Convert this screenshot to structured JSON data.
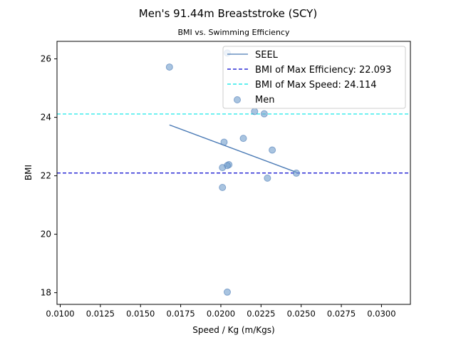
{
  "chart_data": {
    "type": "scatter",
    "title": "Men's 91.44m Breaststroke (SCY)",
    "subtitle": "BMI vs. Swimming Efficiency",
    "xlabel": "Speed / Kg (m/Kgs)",
    "ylabel": "BMI",
    "xlim": [
      0.0098,
      0.0318
    ],
    "ylim": [
      17.6,
      26.6
    ],
    "x_ticks": [
      0.01,
      0.0125,
      0.015,
      0.0175,
      0.02,
      0.0225,
      0.025,
      0.0275,
      0.03
    ],
    "x_tick_labels": [
      "0.0100",
      "0.0125",
      "0.0150",
      "0.0175",
      "0.0200",
      "0.0225",
      "0.0250",
      "0.0275",
      "0.0300"
    ],
    "y_ticks": [
      18,
      20,
      22,
      24,
      26
    ],
    "y_tick_labels": [
      "18",
      "20",
      "22",
      "24",
      "26"
    ],
    "grid": false,
    "legend_position": "top-right",
    "scatter": {
      "name": "Men",
      "color": "#6f9ccc",
      "points": [
        {
          "x": 0.0168,
          "y": 25.72
        },
        {
          "x": 0.0204,
          "y": 26.2
        },
        {
          "x": 0.0221,
          "y": 24.2
        },
        {
          "x": 0.0227,
          "y": 24.12
        },
        {
          "x": 0.0214,
          "y": 23.28
        },
        {
          "x": 0.0202,
          "y": 23.15
        },
        {
          "x": 0.0232,
          "y": 22.88
        },
        {
          "x": 0.0205,
          "y": 22.38
        },
        {
          "x": 0.0204,
          "y": 22.35
        },
        {
          "x": 0.0201,
          "y": 22.28
        },
        {
          "x": 0.0247,
          "y": 22.09
        },
        {
          "x": 0.0229,
          "y": 21.92
        },
        {
          "x": 0.0201,
          "y": 21.6
        },
        {
          "x": 0.0204,
          "y": 18.02
        }
      ]
    },
    "fit_line": {
      "name": "SEEL",
      "color": "#4a7ab5",
      "x": [
        0.0168,
        0.0247
      ],
      "y": [
        23.74,
        22.12
      ]
    },
    "hlines": [
      {
        "name": "BMI of Max Efficiency: 22.093",
        "y": 22.093,
        "color": "#0000cc",
        "dash": "5,3"
      },
      {
        "name": "BMI of Max Speed: 24.114",
        "y": 24.114,
        "color": "#00e5e5",
        "dash": "5,3"
      }
    ]
  }
}
